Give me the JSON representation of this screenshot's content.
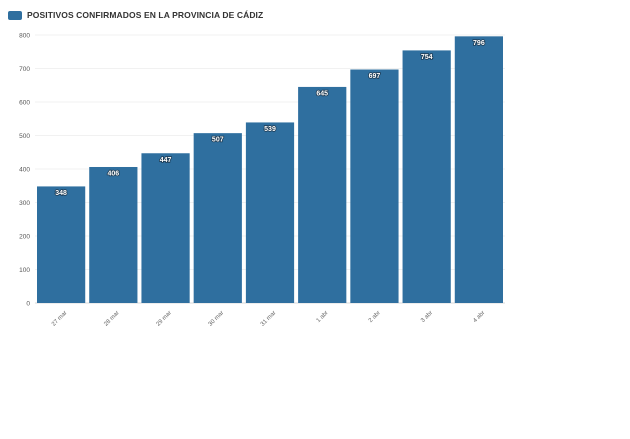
{
  "chart_data": {
    "type": "bar",
    "title": "",
    "xlabel": "",
    "ylabel": "",
    "categories": [
      "27 mar",
      "28 mar",
      "29 mar",
      "30 mar",
      "31 mar",
      "1 abr",
      "2 abr",
      "3 abr",
      "4 abr"
    ],
    "series": [
      {
        "name": "POSITIVOS CONFIRMADOS EN LA PROVINCIA DE CÁDIZ",
        "values": [
          348,
          406,
          447,
          507,
          539,
          645,
          697,
          754,
          796
        ],
        "color": "#2f6f9f"
      }
    ],
    "ylim": [
      0,
      800
    ],
    "yticks": [
      0,
      100,
      200,
      300,
      400,
      500,
      600,
      700,
      800
    ],
    "grid": true,
    "legend_position": "top-left",
    "data_labels": true
  }
}
